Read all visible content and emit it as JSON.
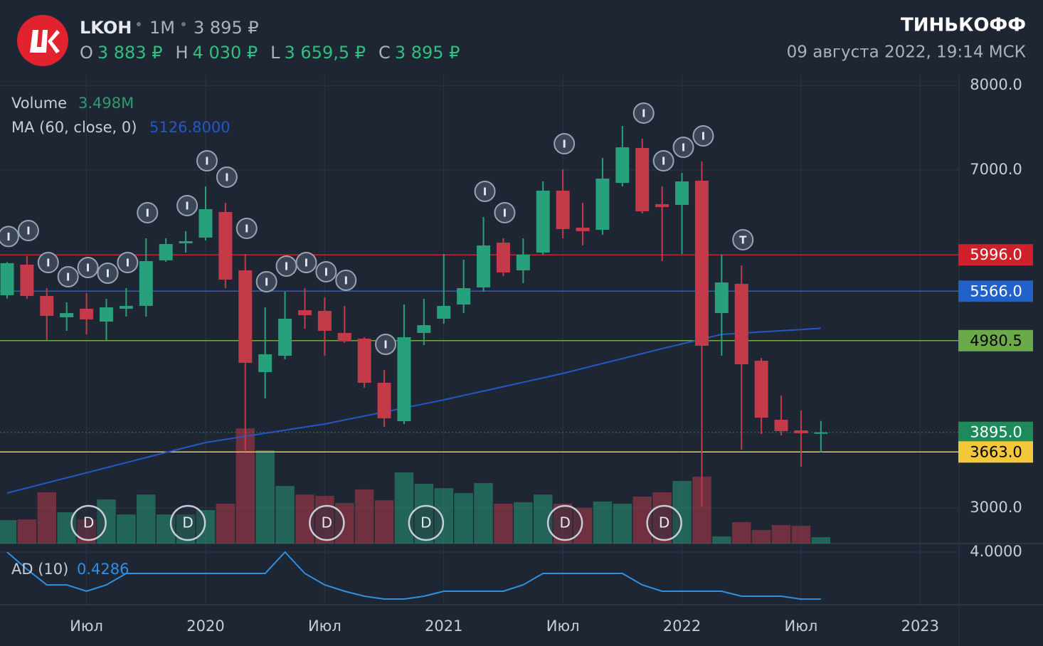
{
  "header": {
    "ticker": "LKOH",
    "interval": "1M",
    "price": "3 895 ₽",
    "ohlc": [
      {
        "key": "O",
        "value": "3 883 ₽"
      },
      {
        "key": "H",
        "value": "4 030 ₽"
      },
      {
        "key": "L",
        "value": "3 659,5 ₽"
      },
      {
        "key": "C",
        "value": "3 895 ₽"
      }
    ],
    "brand": "ТИНЬКОФФ",
    "datetime": "09 августа 2022, 19:14 МСК"
  },
  "chart_data": {
    "type": "candlestick",
    "open": [
      5518,
      5880,
      5509,
      5257,
      5358,
      5206,
      5358,
      5392,
      5931,
      6133,
      6200,
      6503,
      5813,
      4608,
      4802,
      5341,
      5333,
      5072,
      5004,
      4482,
      4027,
      5072,
      5240,
      5408,
      5611,
      6141,
      5813,
      6023,
      6756,
      6318,
      6293,
      6848,
      7261,
      6596,
      6587,
      6874,
      5307,
      5653,
      4743,
      4044,
      3918,
      3883
    ],
    "high": [
      5910,
      5981,
      5602,
      5434,
      5543,
      5476,
      5602,
      6192,
      6192,
      6276,
      6806,
      6613,
      6006,
      5375,
      5560,
      5602,
      5493,
      5392,
      5021,
      4634,
      5408,
      5476,
      6006,
      5939,
      6444,
      6192,
      6192,
      6865,
      7008,
      6613,
      7143,
      7522,
      7371,
      6806,
      6966,
      7101,
      5998,
      5872,
      4777,
      4331,
      4154,
      4030
    ],
    "low": [
      5480,
      5476,
      4987,
      5097,
      5055,
      4987,
      5265,
      5265,
      5914,
      6023,
      6166,
      5602,
      3665,
      4297,
      4760,
      5122,
      4802,
      4954,
      4423,
      3960,
      3994,
      4928,
      5181,
      5307,
      5560,
      5745,
      5661,
      5998,
      6192,
      6107,
      6234,
      6806,
      6486,
      5922,
      6006,
      3017,
      4802,
      3691,
      3876,
      3859,
      3488,
      3659.5
    ],
    "close": [
      5897,
      5509,
      5274,
      5307,
      5232,
      5375,
      5392,
      5922,
      6124,
      6158,
      6537,
      5703,
      4718,
      4819,
      5240,
      5282,
      5097,
      4979,
      4482,
      4061,
      5021,
      5164,
      5392,
      5602,
      6107,
      5787,
      5998,
      6756,
      6301,
      6276,
      6899,
      7269,
      6512,
      6562,
      6865,
      4920,
      5669,
      4701,
      4069,
      3910,
      3884,
      3895
    ],
    "up_color": "#26a17b",
    "down_color": "#c33a49",
    "ylim": [
      2578.9,
      8128.4
    ],
    "yticks": [
      {
        "value": 3000,
        "label": "3000.0"
      },
      {
        "value": 7000,
        "label": "7000.0"
      },
      {
        "value": 8000,
        "label": "8000.0"
      }
    ],
    "xlim": [
      -0.358,
      47.96
    ],
    "xticks": [
      {
        "value": 4,
        "label": "Июл"
      },
      {
        "value": 10,
        "label": "2020"
      },
      {
        "value": 16,
        "label": "Июл"
      },
      {
        "value": 22,
        "label": "2021"
      },
      {
        "value": 28,
        "label": "Июл"
      },
      {
        "value": 34,
        "label": "2022"
      },
      {
        "value": 40,
        "label": "Июл"
      },
      {
        "value": 46,
        "label": "2023"
      }
    ],
    "grid": true,
    "volume": {
      "name": "Volume",
      "value_label": "3.498M",
      "ylim": [
        0,
        100
      ],
      "values": [
        12.8,
        13.2,
        28.0,
        17.1,
        13.2,
        24.1,
        15.9,
        26.8,
        15.9,
        15.9,
        18.3,
        21.8,
        63.0,
        51.0,
        31.5,
        26.8,
        26.1,
        22.2,
        29.6,
        23.7,
        38.9,
        32.7,
        30.3,
        27.6,
        33.1,
        21.8,
        22.6,
        26.8,
        21.8,
        19.5,
        23.0,
        21.8,
        25.7,
        28.0,
        34.2,
        36.6,
        3.9,
        11.7,
        7.4,
        10.1,
        9.7,
        3.498
      ]
    },
    "ma": {
      "name": "MA (60, close, 0)",
      "value_label": "5126.8000",
      "color": "#2457c5",
      "values": [
        3177,
        3237,
        3297,
        3357,
        3417,
        3477,
        3537,
        3597,
        3657,
        3717,
        3775,
        3812,
        3848,
        3885,
        3921,
        3958,
        3994,
        4042,
        4089,
        4137,
        4185,
        4232,
        4280,
        4332,
        4384,
        4436,
        4488,
        4540,
        4592,
        4651,
        4710,
        4768,
        4827,
        4886,
        4942,
        4999,
        5055,
        5069,
        5084,
        5098,
        5112,
        5126.8
      ]
    },
    "ad": {
      "name": "AD (10)",
      "value_label": "0.4286",
      "color": "#2f8fe0",
      "ylim": [
        0,
        4.65
      ],
      "yticks": [
        {
          "value": 4,
          "label": "4.0000"
        }
      ],
      "values": [
        4.0,
        2.7,
        1.51,
        1.51,
        1.03,
        1.51,
        2.38,
        2.38,
        2.38,
        2.38,
        2.38,
        2.38,
        2.38,
        2.38,
        4.0,
        2.38,
        1.51,
        1.03,
        0.65,
        0.43,
        0.43,
        0.65,
        1.03,
        1.03,
        1.03,
        1.03,
        1.51,
        2.38,
        2.38,
        2.38,
        2.38,
        2.38,
        1.51,
        1.03,
        1.03,
        1.03,
        1.03,
        0.65,
        0.65,
        0.65,
        0.4286,
        0.4286
      ]
    },
    "levels": [
      {
        "value": 5996,
        "label": "5996.0",
        "color": "#d0202a",
        "label_color": "#ffffff",
        "style": "solid"
      },
      {
        "value": 5566,
        "label": "5566.0",
        "color": "#2261c9",
        "label_color": "#ffffff",
        "style": "solid"
      },
      {
        "value": 4980.5,
        "label": "4980.5",
        "color": "#6aaa48",
        "label_color": "#000000",
        "style": "solid"
      },
      {
        "value": 3895,
        "label": "3895.0",
        "color": "#1e8a5a",
        "label_color": "#ffffff",
        "style": "dotted"
      },
      {
        "value": 3663,
        "label": "3663.0",
        "color": "#f2c83a",
        "label_color": "#000000",
        "style": "solid"
      }
    ],
    "idea_markers": [
      "I",
      "I",
      "I",
      "I",
      "I",
      "I",
      "I",
      "I",
      null,
      "I",
      "I",
      "I",
      "I",
      "I",
      "I",
      "I",
      "I",
      "I",
      null,
      "I",
      null,
      null,
      null,
      null,
      "I",
      "I",
      null,
      null,
      "I",
      null,
      null,
      null,
      "I",
      "I",
      "I",
      "I",
      null,
      "T",
      null,
      null,
      null,
      null
    ],
    "dividend_markers": [
      null,
      null,
      null,
      null,
      "D",
      null,
      null,
      null,
      null,
      "D",
      null,
      null,
      null,
      null,
      null,
      null,
      "D",
      null,
      null,
      null,
      null,
      "D",
      null,
      null,
      null,
      null,
      null,
      null,
      "D",
      null,
      null,
      null,
      null,
      "D",
      null,
      null,
      null,
      null,
      null,
      null,
      null,
      null
    ]
  }
}
